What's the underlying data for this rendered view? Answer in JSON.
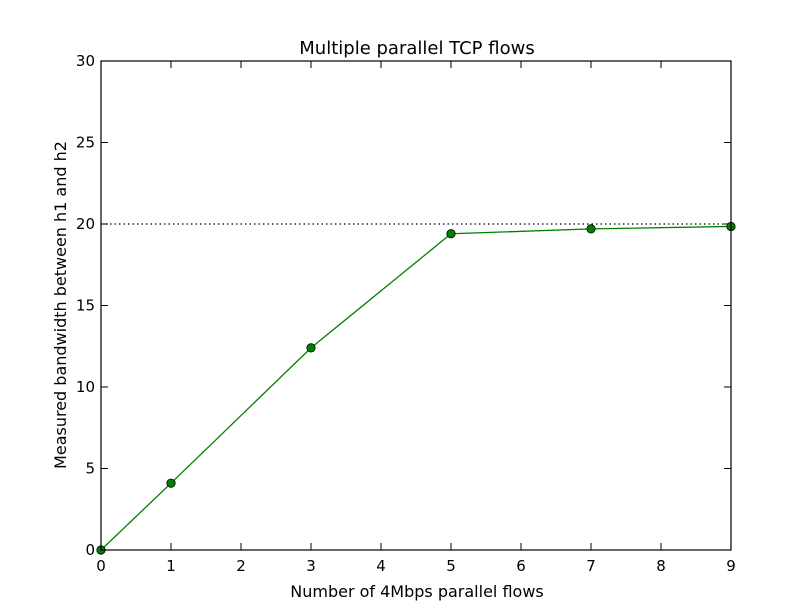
{
  "chart_data": {
    "type": "line",
    "title": "Multiple parallel TCP flows",
    "xlabel": "Number of 4Mbps parallel flows",
    "ylabel": "Measured bandwidth between h1 and h2",
    "xlim": [
      0,
      9
    ],
    "ylim": [
      0,
      30
    ],
    "xticks": [
      0,
      1,
      2,
      3,
      4,
      5,
      6,
      7,
      8,
      9
    ],
    "yticks": [
      0,
      5,
      10,
      15,
      20,
      25,
      30
    ],
    "grid": false,
    "series": [
      {
        "x": [
          0,
          1,
          3,
          5,
          7,
          9
        ],
        "y": [
          0,
          4.1,
          12.4,
          19.4,
          19.7,
          19.85
        ],
        "color": "#008000",
        "marker": "circle"
      }
    ],
    "reference_lines": [
      {
        "orientation": "horizontal",
        "y": 20,
        "style": "dotted",
        "color": "#000000"
      }
    ]
  }
}
